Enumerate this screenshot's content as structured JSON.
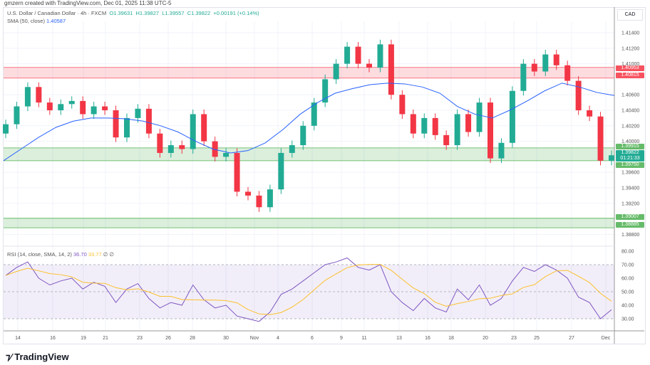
{
  "credit": "gmzern created with TradingView.com, Dec 01, 2025 11:38 UTC-5",
  "legend": {
    "symbol": "U.S. Dollar / Canadian Dollar · 4h · FXCM",
    "o": "O1.39631",
    "h": "H1.39827",
    "l": "L1.39557",
    "c": "C1.39822",
    "chg": "+0.00191 (+0.14%)",
    "sma_label": "SMA (50, close)",
    "sma_value": "1.40587",
    "rsi_label": "RSI (14, close, SMA, 14, 2)",
    "rsi_value": "36.70",
    "rsi_sma_value": "33.77",
    "rsi_extra": "∅ ∅"
  },
  "currency": "CAD",
  "logo": "TradingView",
  "colors": {
    "up": "#22ab94",
    "down": "#f23645",
    "sma": "#2962ff",
    "rsi": "#7e57c2",
    "rsi_sma": "#fbc02d",
    "resistance": "#f7525f",
    "support": "#4caf50"
  },
  "price_labels": {
    "res_top": "1.40953",
    "res_bottom": "1.40815",
    "sup_top": "1.39915",
    "current": "1.39822",
    "countdown": "01:21:33",
    "sup_bottom": "1.39750",
    "sup2_top": "1.39007",
    "sup2_bottom": "1.38885"
  },
  "chart_data": [
    {
      "type": "candlestick",
      "ylim": [
        1.388,
        1.414
      ],
      "yticks": [
        "1.41400",
        "1.41200",
        "1.41000",
        "1.40600",
        "1.40400",
        "1.40200",
        "1.40000",
        "1.39600",
        "1.39400",
        "1.39200",
        "1.38800"
      ],
      "xticks": [
        "14",
        "16",
        "19",
        "21",
        "23",
        "26",
        "28",
        "30",
        "Nov",
        "4",
        "6",
        "9",
        "11",
        "13",
        "16",
        "18",
        "20",
        "23",
        "25",
        "27",
        "Dec"
      ],
      "close": [
        1.4022,
        1.4045,
        1.407,
        1.405,
        1.404,
        1.4048,
        1.4052,
        1.4035,
        1.4045,
        1.404,
        1.4005,
        1.403,
        1.4042,
        1.401,
        1.3985,
        1.3995,
        1.399,
        1.4035,
        1.4,
        1.398,
        1.3985,
        1.3935,
        1.393,
        1.3915,
        1.3938,
        1.3985,
        1.3995,
        1.402,
        1.405,
        1.408,
        1.41,
        1.4122,
        1.41,
        1.4095,
        1.4125,
        1.406,
        1.4035,
        1.401,
        1.403,
        1.4008,
        1.3995,
        1.4035,
        1.4012,
        1.405,
        1.3978,
        1.3998,
        1.4065,
        1.41,
        1.409,
        1.4112,
        1.4098,
        1.4078,
        1.404,
        1.4032,
        1.3975,
        1.3982
      ],
      "sma": [
        1.3975,
        1.399,
        1.4005,
        1.4018,
        1.4026,
        1.403,
        1.403,
        1.4029,
        1.4026,
        1.402,
        1.4012,
        1.4,
        1.399,
        1.3985,
        1.3988,
        1.3998,
        1.4015,
        1.4035,
        1.405,
        1.4062,
        1.4068,
        1.4073,
        1.4075,
        1.4074,
        1.407,
        1.4062,
        1.4045,
        1.4035,
        1.403,
        1.404,
        1.4052,
        1.4065,
        1.4075,
        1.407,
        1.4063,
        1.4059
      ],
      "zones": [
        {
          "from": 1.40815,
          "to": 1.40953,
          "kind": "resistance"
        },
        {
          "from": 1.3975,
          "to": 1.39915,
          "kind": "support"
        },
        {
          "from": 1.38885,
          "to": 1.39007,
          "kind": "support"
        }
      ]
    },
    {
      "type": "line",
      "ylim": [
        25,
        82
      ],
      "yticks": [
        "80.00",
        "70.00",
        "60.00",
        "50.00",
        "40.00",
        "30.00"
      ],
      "bands": [
        30,
        70
      ],
      "rsi": [
        62,
        68,
        72,
        60,
        55,
        58,
        60,
        52,
        57,
        54,
        42,
        52,
        56,
        45,
        38,
        42,
        40,
        55,
        44,
        38,
        40,
        32,
        30,
        28,
        35,
        48,
        52,
        58,
        64,
        70,
        72,
        75,
        68,
        66,
        70,
        50,
        42,
        36,
        45,
        38,
        35,
        52,
        44,
        55,
        40,
        45,
        58,
        68,
        65,
        70,
        66,
        60,
        46,
        42,
        30,
        36.7
      ]
    }
  ]
}
